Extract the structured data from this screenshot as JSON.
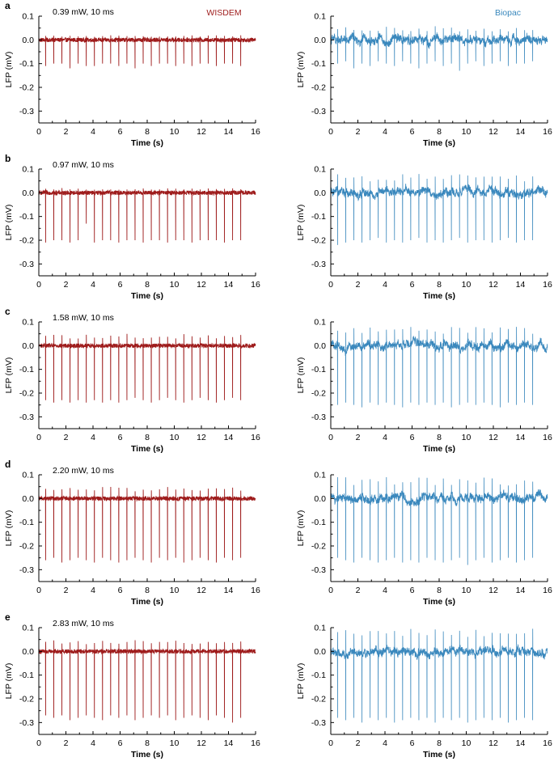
{
  "figure": {
    "legend_wisdem": "WISDEM",
    "legend_biopac": "Biopac",
    "colors": {
      "wisdem": "#9e1b1b",
      "biopac": "#3a88bd",
      "axis": "#000000"
    }
  },
  "chart_data": [
    {
      "type": "line",
      "panel": "a",
      "condition": "0.39 mW, 10 ms",
      "system": "WISDEM",
      "xlabel": "Time (s)",
      "ylabel": "LFP (mV)",
      "xlim": [
        0,
        16
      ],
      "ylim": [
        -0.35,
        0.1
      ],
      "xticks": [
        "0",
        "2",
        "4",
        "6",
        "8",
        "10",
        "12",
        "14",
        "16"
      ],
      "yticks": [
        "0.1",
        "0.0",
        "-0.1",
        "-0.2",
        "-0.3"
      ],
      "pulse_times_s": [
        0.5,
        1.1,
        1.7,
        2.3,
        2.9,
        3.5,
        4.1,
        4.7,
        5.3,
        5.9,
        6.5,
        7.1,
        7.7,
        8.3,
        8.9,
        9.5,
        10.1,
        10.7,
        11.3,
        11.9,
        12.5,
        13.1,
        13.7,
        14.3,
        14.9
      ],
      "spike_min_mV": [
        -0.11,
        -0.1,
        -0.1,
        -0.12,
        -0.1,
        -0.11,
        -0.11,
        -0.1,
        -0.1,
        -0.11,
        -0.1,
        -0.12,
        -0.1,
        -0.11,
        -0.1,
        -0.1,
        -0.11,
        -0.1,
        -0.11,
        -0.1,
        -0.1,
        -0.11,
        -0.1,
        -0.1,
        -0.11
      ],
      "spike_max_mV": 0.02,
      "baseline_noise_mV": 0.01
    },
    {
      "type": "line",
      "panel": "a",
      "system": "Biopac",
      "xlabel": "Time (s)",
      "ylabel": "LFP (mV)",
      "xlim": [
        0,
        16
      ],
      "ylim": [
        -0.35,
        0.1
      ],
      "xticks": [
        "0",
        "2",
        "4",
        "6",
        "8",
        "10",
        "12",
        "14",
        "16"
      ],
      "yticks": [
        "0.1",
        "0.0",
        "-0.1",
        "-0.2",
        "-0.3"
      ],
      "pulse_times_s": [
        0.5,
        1.1,
        1.7,
        2.3,
        2.9,
        3.5,
        4.1,
        4.7,
        5.3,
        5.9,
        6.5,
        7.1,
        7.7,
        8.3,
        8.9,
        9.5,
        10.1,
        10.7,
        11.3,
        11.9,
        12.5,
        13.1,
        13.7,
        14.3,
        14.9
      ],
      "spike_min_mV": [
        -0.1,
        -0.09,
        -0.12,
        -0.1,
        -0.11,
        -0.09,
        -0.1,
        -0.11,
        -0.09,
        -0.1,
        -0.12,
        -0.1,
        -0.09,
        -0.11,
        -0.1,
        -0.13,
        -0.1,
        -0.09,
        -0.11,
        -0.1,
        -0.09,
        -0.11,
        -0.1,
        -0.1,
        -0.09
      ],
      "spike_max_mV": 0.06,
      "baseline_noise_mV": 0.03
    },
    {
      "type": "line",
      "panel": "b",
      "condition": "0.97 mW, 10 ms",
      "system": "WISDEM",
      "xlabel": "Time (s)",
      "ylabel": "LFP (mV)",
      "xlim": [
        0,
        16
      ],
      "ylim": [
        -0.35,
        0.1
      ],
      "xticks": [
        "0",
        "2",
        "4",
        "6",
        "8",
        "10",
        "12",
        "14",
        "16"
      ],
      "yticks": [
        "0.1",
        "0.0",
        "-0.1",
        "-0.2",
        "-0.3"
      ],
      "pulse_times_s": [
        0.5,
        1.1,
        1.7,
        2.3,
        2.9,
        3.5,
        4.1,
        4.7,
        5.3,
        5.9,
        6.5,
        7.1,
        7.7,
        8.3,
        8.9,
        9.5,
        10.1,
        10.7,
        11.3,
        11.9,
        12.5,
        13.1,
        13.7,
        14.3,
        14.9
      ],
      "spike_min_mV": [
        -0.21,
        -0.2,
        -0.2,
        -0.21,
        -0.2,
        -0.13,
        -0.21,
        -0.2,
        -0.2,
        -0.21,
        -0.2,
        -0.2,
        -0.21,
        -0.2,
        -0.2,
        -0.21,
        -0.2,
        -0.2,
        -0.21,
        -0.2,
        -0.2,
        -0.2,
        -0.21,
        -0.2,
        -0.2
      ],
      "spike_max_mV": 0.02,
      "baseline_noise_mV": 0.01
    },
    {
      "type": "line",
      "panel": "b",
      "system": "Biopac",
      "xlabel": "Time (s)",
      "ylabel": "LFP (mV)",
      "xlim": [
        0,
        16
      ],
      "ylim": [
        -0.35,
        0.1
      ],
      "xticks": [
        "0",
        "2",
        "4",
        "6",
        "8",
        "10",
        "12",
        "14",
        "16"
      ],
      "yticks": [
        "0.1",
        "0.0",
        "-0.1",
        "-0.2",
        "-0.3"
      ],
      "pulse_times_s": [
        0.5,
        1.1,
        1.7,
        2.3,
        2.9,
        3.5,
        4.1,
        4.7,
        5.3,
        5.9,
        6.5,
        7.1,
        7.7,
        8.3,
        8.9,
        9.5,
        10.1,
        10.7,
        11.3,
        11.9,
        12.5,
        13.1,
        13.7,
        14.3,
        14.9
      ],
      "spike_min_mV": [
        -0.22,
        -0.21,
        -0.2,
        -0.21,
        -0.2,
        -0.19,
        -0.21,
        -0.2,
        -0.21,
        -0.2,
        -0.19,
        -0.21,
        -0.2,
        -0.21,
        -0.2,
        -0.19,
        -0.21,
        -0.2,
        -0.2,
        -0.21,
        -0.2,
        -0.19,
        -0.21,
        -0.2,
        -0.2
      ],
      "spike_max_mV": 0.08,
      "baseline_noise_mV": 0.03
    },
    {
      "type": "line",
      "panel": "c",
      "condition": "1.58 mW, 10 ms",
      "system": "WISDEM",
      "xlabel": "Time (s)",
      "ylabel": "LFP (mV)",
      "xlim": [
        0,
        16
      ],
      "ylim": [
        -0.35,
        0.1
      ],
      "xticks": [
        "0",
        "2",
        "4",
        "6",
        "8",
        "10",
        "12",
        "14",
        "16"
      ],
      "yticks": [
        "0.1",
        "0.0",
        "-0.1",
        "-0.2",
        "-0.3"
      ],
      "pulse_times_s": [
        0.5,
        1.1,
        1.7,
        2.3,
        2.9,
        3.5,
        4.1,
        4.7,
        5.3,
        5.9,
        6.5,
        7.1,
        7.7,
        8.3,
        8.9,
        9.5,
        10.1,
        10.7,
        11.3,
        11.9,
        12.5,
        13.1,
        13.7,
        14.3,
        14.9
      ],
      "spike_min_mV": [
        -0.23,
        -0.24,
        -0.23,
        -0.24,
        -0.23,
        -0.24,
        -0.23,
        -0.24,
        -0.23,
        -0.24,
        -0.23,
        -0.22,
        -0.23,
        -0.24,
        -0.23,
        -0.22,
        -0.23,
        -0.24,
        -0.23,
        -0.22,
        -0.23,
        -0.24,
        -0.23,
        -0.22,
        -0.23
      ],
      "spike_max_mV": 0.05,
      "baseline_noise_mV": 0.01
    },
    {
      "type": "line",
      "panel": "c",
      "system": "Biopac",
      "xlabel": "Time (s)",
      "ylabel": "LFP (mV)",
      "xlim": [
        0,
        16
      ],
      "ylim": [
        -0.35,
        0.1
      ],
      "xticks": [
        "0",
        "2",
        "4",
        "6",
        "8",
        "10",
        "12",
        "14",
        "16"
      ],
      "yticks": [
        "0.1",
        "0.0",
        "-0.1",
        "-0.2",
        "-0.3"
      ],
      "pulse_times_s": [
        0.5,
        1.1,
        1.7,
        2.3,
        2.9,
        3.5,
        4.1,
        4.7,
        5.3,
        5.9,
        6.5,
        7.1,
        7.7,
        8.3,
        8.9,
        9.5,
        10.1,
        10.7,
        11.3,
        11.9,
        12.5,
        13.1,
        13.7,
        14.3,
        14.9
      ],
      "spike_min_mV": [
        -0.25,
        -0.24,
        -0.25,
        -0.26,
        -0.24,
        -0.25,
        -0.24,
        -0.25,
        -0.26,
        -0.24,
        -0.25,
        -0.24,
        -0.25,
        -0.24,
        -0.26,
        -0.25,
        -0.24,
        -0.25,
        -0.24,
        -0.25,
        -0.26,
        -0.24,
        -0.25,
        -0.24,
        -0.25
      ],
      "spike_max_mV": 0.08,
      "baseline_noise_mV": 0.03
    },
    {
      "type": "line",
      "panel": "d",
      "condition": "2.20 mW, 10 ms",
      "system": "WISDEM",
      "xlabel": "Time (s)",
      "ylabel": "LFP (mV)",
      "xlim": [
        0,
        16
      ],
      "ylim": [
        -0.35,
        0.1
      ],
      "xticks": [
        "0",
        "2",
        "4",
        "6",
        "8",
        "10",
        "12",
        "14",
        "16"
      ],
      "yticks": [
        "0.1",
        "0.0",
        "-0.1",
        "-0.2",
        "-0.3"
      ],
      "pulse_times_s": [
        0.5,
        1.1,
        1.7,
        2.3,
        2.9,
        3.5,
        4.1,
        4.7,
        5.3,
        5.9,
        6.5,
        7.1,
        7.7,
        8.3,
        8.9,
        9.5,
        10.1,
        10.7,
        11.3,
        11.9,
        12.5,
        13.1,
        13.7,
        14.3,
        14.9
      ],
      "spike_min_mV": [
        -0.26,
        -0.25,
        -0.27,
        -0.26,
        -0.25,
        -0.26,
        -0.27,
        -0.25,
        -0.26,
        -0.27,
        -0.26,
        -0.25,
        -0.26,
        -0.27,
        -0.25,
        -0.26,
        -0.25,
        -0.27,
        -0.26,
        -0.25,
        -0.26,
        -0.27,
        -0.25,
        -0.26,
        -0.25
      ],
      "spike_max_mV": 0.05,
      "baseline_noise_mV": 0.01
    },
    {
      "type": "line",
      "panel": "d",
      "system": "Biopac",
      "xlabel": "Time (s)",
      "ylabel": "LFP (mV)",
      "xlim": [
        0,
        16
      ],
      "ylim": [
        -0.35,
        0.1
      ],
      "xticks": [
        "0",
        "2",
        "4",
        "6",
        "8",
        "10",
        "12",
        "14",
        "16"
      ],
      "yticks": [
        "0.1",
        "0.0",
        "-0.1",
        "-0.2",
        "-0.3"
      ],
      "pulse_times_s": [
        0.5,
        1.1,
        1.7,
        2.3,
        2.9,
        3.5,
        4.1,
        4.7,
        5.3,
        5.9,
        6.5,
        7.1,
        7.7,
        8.3,
        8.9,
        9.5,
        10.1,
        10.7,
        11.3,
        11.9,
        12.5,
        13.1,
        13.7,
        14.3,
        14.9
      ],
      "spike_min_mV": [
        -0.25,
        -0.26,
        -0.27,
        -0.25,
        -0.26,
        -0.27,
        -0.26,
        -0.25,
        -0.27,
        -0.26,
        -0.27,
        -0.25,
        -0.26,
        -0.27,
        -0.26,
        -0.25,
        -0.28,
        -0.26,
        -0.25,
        -0.27,
        -0.26,
        -0.25,
        -0.27,
        -0.26,
        -0.25
      ],
      "spike_max_mV": 0.09,
      "baseline_noise_mV": 0.03
    },
    {
      "type": "line",
      "panel": "e",
      "condition": "2.83 mW, 10 ms",
      "system": "WISDEM",
      "xlabel": "Time (s)",
      "ylabel": "LFP (mV)",
      "xlim": [
        0,
        16
      ],
      "ylim": [
        -0.35,
        0.1
      ],
      "xticks": [
        "0",
        "2",
        "4",
        "6",
        "8",
        "10",
        "12",
        "14",
        "16"
      ],
      "yticks": [
        "0.1",
        "0.0",
        "-0.1",
        "-0.2",
        "-0.3"
      ],
      "pulse_times_s": [
        0.5,
        1.1,
        1.7,
        2.3,
        2.9,
        3.5,
        4.1,
        4.7,
        5.3,
        5.9,
        6.5,
        7.1,
        7.7,
        8.3,
        8.9,
        9.5,
        10.1,
        10.7,
        11.3,
        11.9,
        12.5,
        13.1,
        13.7,
        14.3,
        14.9
      ],
      "spike_min_mV": [
        -0.27,
        -0.28,
        -0.27,
        -0.29,
        -0.28,
        -0.27,
        -0.28,
        -0.29,
        -0.27,
        -0.28,
        -0.27,
        -0.29,
        -0.28,
        -0.27,
        -0.28,
        -0.27,
        -0.29,
        -0.28,
        -0.27,
        -0.28,
        -0.29,
        -0.27,
        -0.28,
        -0.3,
        -0.28
      ],
      "spike_max_mV": 0.05,
      "baseline_noise_mV": 0.01
    },
    {
      "type": "line",
      "panel": "e",
      "system": "Biopac",
      "xlabel": "Time (s)",
      "ylabel": "LFP (mV)",
      "xlim": [
        0,
        16
      ],
      "ylim": [
        -0.35,
        0.1
      ],
      "xticks": [
        "0",
        "2",
        "4",
        "6",
        "8",
        "10",
        "12",
        "14",
        "16"
      ],
      "yticks": [
        "0.1",
        "0.0",
        "-0.1",
        "-0.2",
        "-0.3"
      ],
      "pulse_times_s": [
        0.5,
        1.1,
        1.7,
        2.3,
        2.9,
        3.5,
        4.1,
        4.7,
        5.3,
        5.9,
        6.5,
        7.1,
        7.7,
        8.3,
        8.9,
        9.5,
        10.1,
        10.7,
        11.3,
        11.9,
        12.5,
        13.1,
        13.7,
        14.3,
        14.9
      ],
      "spike_min_mV": [
        -0.28,
        -0.29,
        -0.28,
        -0.3,
        -0.28,
        -0.29,
        -0.28,
        -0.3,
        -0.29,
        -0.28,
        -0.29,
        -0.28,
        -0.3,
        -0.28,
        -0.29,
        -0.28,
        -0.3,
        -0.29,
        -0.28,
        -0.29,
        -0.28,
        -0.3,
        -0.29,
        -0.28,
        -0.29
      ],
      "spike_max_mV": 0.1,
      "baseline_noise_mV": 0.03
    }
  ]
}
